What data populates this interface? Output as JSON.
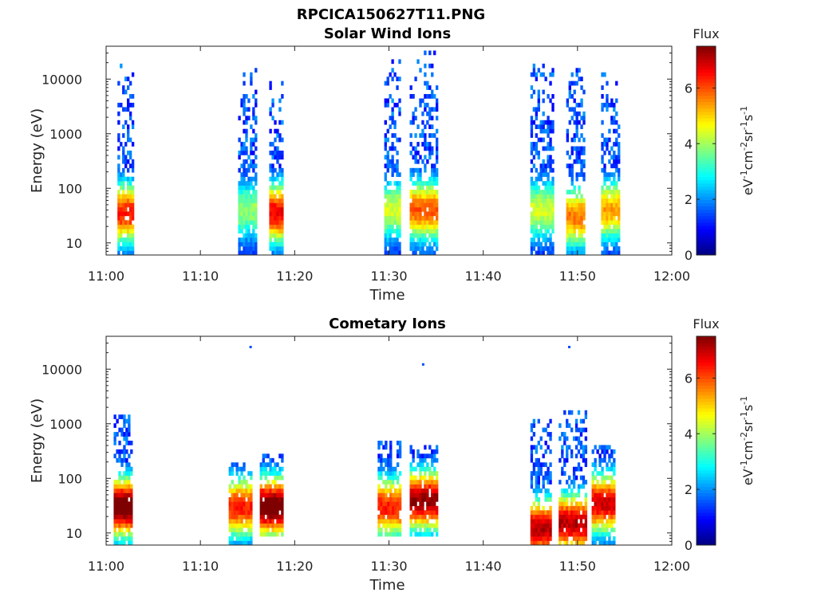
{
  "figure": {
    "title": "RPCICA150627T11.PNG",
    "colormap": [
      "#00007f",
      "#0000ff",
      "#007fff",
      "#00ffff",
      "#7fff7f",
      "#ffff00",
      "#ff7f00",
      "#ff0000",
      "#7f0000"
    ]
  },
  "chart_data": [
    {
      "type": "heatmap",
      "title": "Solar Wind Ions",
      "xlabel": "Time",
      "ylabel": "Energy (eV)",
      "x_range": [
        "11:00",
        "12:00"
      ],
      "x_ticks": [
        "11:00",
        "11:10",
        "11:20",
        "11:30",
        "11:40",
        "11:50",
        "12:00"
      ],
      "y_scale": "log",
      "y_range": [
        6,
        40000
      ],
      "y_ticks": [
        "10",
        "100",
        "1000",
        "10000"
      ],
      "colorbar": {
        "label": "Flux",
        "units": "eV-1cm-2sr-1s-1",
        "range": [
          0,
          7.5
        ],
        "ticks": [
          "0",
          "2",
          "4",
          "6"
        ]
      },
      "bursts": [
        {
          "t_start_min": 1.2,
          "t_end_min": 2.8,
          "e_min": 6,
          "e_max": 20000,
          "peak_flux": 5.5,
          "peak_energy": 35
        },
        {
          "t_start_min": 14.0,
          "t_end_min": 15.8,
          "e_min": 6,
          "e_max": 15000,
          "peak_flux": 3.0,
          "peak_energy": 40
        },
        {
          "t_start_min": 17.3,
          "t_end_min": 18.8,
          "e_min": 6,
          "e_max": 12000,
          "peak_flux": 5.8,
          "peak_energy": 35
        },
        {
          "t_start_min": 29.5,
          "t_end_min": 31.2,
          "e_min": 6,
          "e_max": 22000,
          "peak_flux": 3.5,
          "peak_energy": 40
        },
        {
          "t_start_min": 32.2,
          "t_end_min": 35.0,
          "e_min": 6,
          "e_max": 35000,
          "peak_flux": 5.0,
          "peak_energy": 40
        },
        {
          "t_start_min": 45.0,
          "t_end_min": 47.5,
          "e_min": 6,
          "e_max": 20000,
          "peak_flux": 3.5,
          "peak_energy": 40
        },
        {
          "t_start_min": 48.8,
          "t_end_min": 50.8,
          "e_min": 6,
          "e_max": 20000,
          "peak_flux": 4.8,
          "peak_energy": 30
        },
        {
          "t_start_min": 52.5,
          "t_end_min": 54.3,
          "e_min": 6,
          "e_max": 14000,
          "peak_flux": 4.5,
          "peak_energy": 40
        }
      ]
    },
    {
      "type": "heatmap",
      "title": "Cometary Ions",
      "xlabel": "Time",
      "ylabel": "Energy (eV)",
      "x_range": [
        "11:00",
        "12:00"
      ],
      "x_ticks": [
        "11:00",
        "11:10",
        "11:20",
        "11:30",
        "11:40",
        "11:50",
        "12:00"
      ],
      "y_scale": "log",
      "y_range": [
        6,
        40000
      ],
      "y_ticks": [
        "10",
        "100",
        "1000",
        "10000"
      ],
      "colorbar": {
        "label": "Flux",
        "units": "eV-1cm-2sr-1s-1",
        "range": [
          0,
          7.5
        ],
        "ticks": [
          "0",
          "2",
          "4",
          "6"
        ]
      },
      "bursts": [
        {
          "t_start_min": 0.8,
          "t_end_min": 2.8,
          "e_min": 6,
          "e_max": 1500,
          "peak_flux": 7.0,
          "peak_energy": 30
        },
        {
          "t_start_min": 13.0,
          "t_end_min": 15.5,
          "e_min": 6,
          "e_max": 200,
          "peak_flux": 5.5,
          "peak_energy": 30
        },
        {
          "t_start_min": 16.3,
          "t_end_min": 18.8,
          "e_min": 8,
          "e_max": 300,
          "peak_flux": 7.0,
          "peak_energy": 30
        },
        {
          "t_start_min": 28.8,
          "t_end_min": 31.2,
          "e_min": 8,
          "e_max": 500,
          "peak_flux": 5.5,
          "peak_energy": 30
        },
        {
          "t_start_min": 32.2,
          "t_end_min": 35.0,
          "e_min": 8,
          "e_max": 400,
          "peak_flux": 6.5,
          "peak_energy": 40
        },
        {
          "t_start_min": 45.0,
          "t_end_min": 47.2,
          "e_min": 6,
          "e_max": 1200,
          "peak_flux": 6.2,
          "peak_energy": 12
        },
        {
          "t_start_min": 48.0,
          "t_end_min": 50.8,
          "e_min": 6,
          "e_max": 1800,
          "peak_flux": 6.2,
          "peak_energy": 15
        },
        {
          "t_start_min": 51.5,
          "t_end_min": 54.0,
          "e_min": 6,
          "e_max": 400,
          "peak_flux": 6.0,
          "peak_energy": 35
        }
      ],
      "isolated_points": [
        {
          "t_min": 15.2,
          "energy": 25000,
          "flux": 1.5
        },
        {
          "t_min": 33.5,
          "energy": 12000,
          "flux": 1.5
        },
        {
          "t_min": 49.0,
          "energy": 25000,
          "flux": 1.5
        }
      ]
    }
  ]
}
